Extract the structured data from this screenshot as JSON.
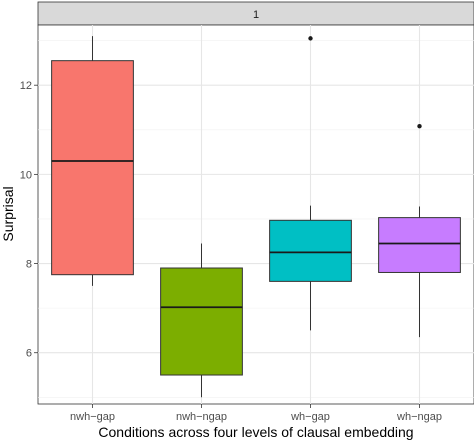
{
  "chart_data": {
    "type": "boxplot",
    "facet_label": "1",
    "xlabel": "Conditions across four levels of clausal embedding",
    "ylabel": "Surprisal",
    "ylim": [
      4.85,
      13.35
    ],
    "y_ticks": [
      6,
      8,
      10,
      12
    ],
    "grid": true,
    "categories": [
      "nwh−gap",
      "nwh−ngap",
      "wh−gap",
      "wh−ngap"
    ],
    "boxes": [
      {
        "category": "nwh−gap",
        "color": "#F8766D",
        "whisker_low": 7.5,
        "q1": 7.75,
        "median": 10.3,
        "q3": 12.55,
        "whisker_high": 13.1,
        "outliers": []
      },
      {
        "category": "nwh−ngap",
        "color": "#7CAE00",
        "whisker_low": 5.0,
        "q1": 5.5,
        "median": 7.02,
        "q3": 7.9,
        "whisker_high": 8.45,
        "outliers": []
      },
      {
        "category": "wh−gap",
        "color": "#00BFC4",
        "whisker_low": 6.5,
        "q1": 7.6,
        "median": 8.25,
        "q3": 8.97,
        "whisker_high": 9.3,
        "outliers": [
          13.05
        ]
      },
      {
        "category": "wh−ngap",
        "color": "#C77CFF",
        "whisker_low": 6.35,
        "q1": 7.8,
        "median": 8.45,
        "q3": 9.03,
        "whisker_high": 9.28,
        "outliers": [
          11.08
        ]
      }
    ]
  }
}
